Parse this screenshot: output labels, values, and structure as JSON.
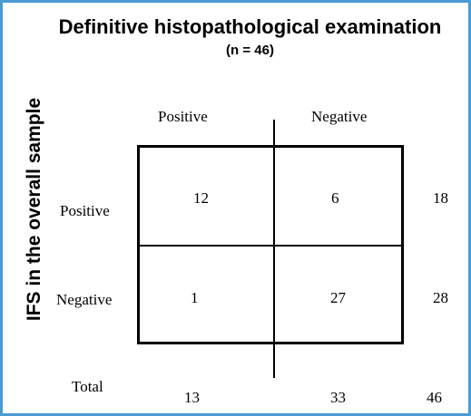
{
  "title": "Definitive histopathological examination",
  "subtitle": "(n = 46)",
  "row_axis_title": "IFS in the overall sample",
  "columns": [
    "Positive",
    "Negative"
  ],
  "rows": [
    {
      "label": "Positive",
      "cells": [
        "12",
        "6"
      ],
      "total": "18"
    },
    {
      "label": "Negative",
      "cells": [
        "1",
        "27"
      ],
      "total": "28"
    }
  ],
  "total_row": {
    "label": "Total",
    "values": [
      "13",
      "33"
    ],
    "grand_total": "46"
  }
}
